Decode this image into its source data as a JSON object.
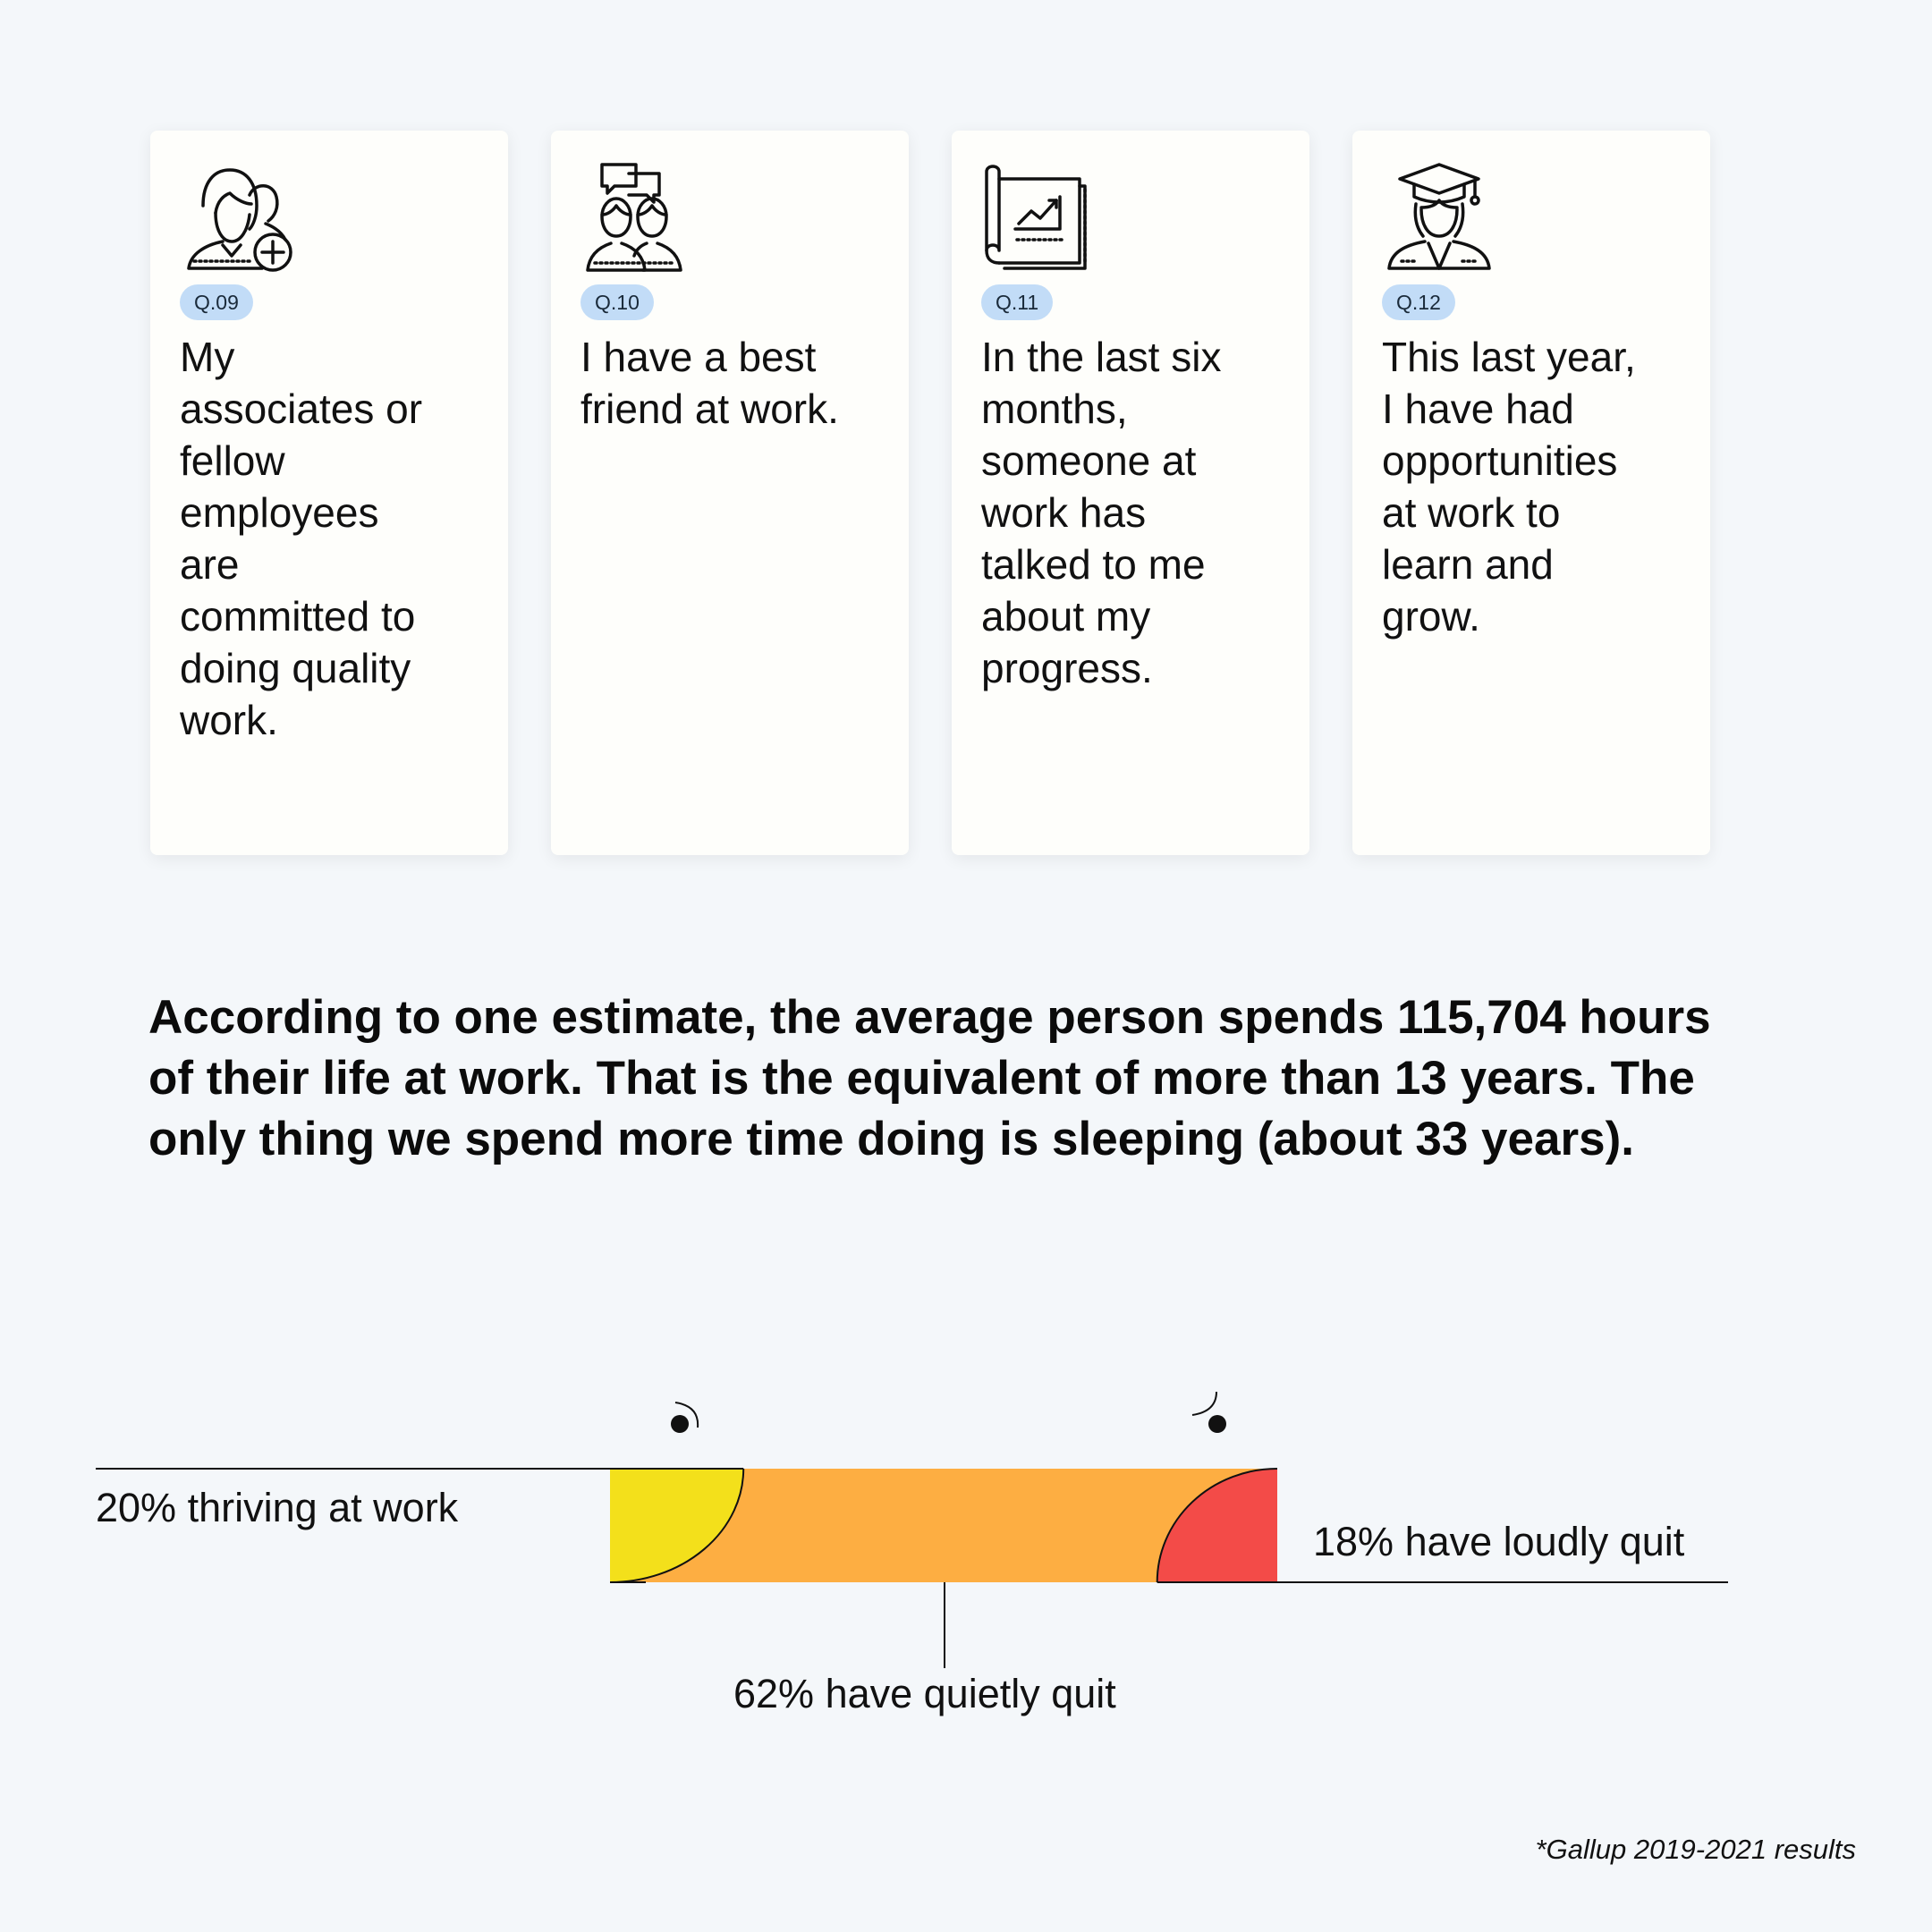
{
  "cards": [
    {
      "tag": "Q.09",
      "icon": "people-add-icon",
      "text": "My associates or fellow employees are committed to doing quality work."
    },
    {
      "tag": "Q.10",
      "icon": "chat-friends-icon",
      "text": "I have a best friend at work."
    },
    {
      "tag": "Q.11",
      "icon": "progress-chart-icon",
      "text": "In the last six months, someone at work has talked to me about my progress."
    },
    {
      "tag": "Q.12",
      "icon": "graduate-icon",
      "text": "This last year, I have had opportunities at work to learn and grow."
    }
  ],
  "statement": "According to one estimate, the average person spends 115,704 hours of their life at work. That is the equivalent of more than 13 years. The only thing we spend more time doing is sleeping (about 33 years).",
  "chart_data": {
    "type": "bar",
    "orientation": "horizontal-stacked",
    "segments": [
      {
        "label": "20% thriving at work",
        "value": 20,
        "color": "#f3e01b"
      },
      {
        "label": "62% have quietly quit",
        "value": 62,
        "color": "#fdae42"
      },
      {
        "label": "18% have loudly quit",
        "value": 18,
        "color": "#f34b48"
      }
    ],
    "unit": "%",
    "total": 100
  },
  "footnote": "*Gallup 2019-2021 results"
}
